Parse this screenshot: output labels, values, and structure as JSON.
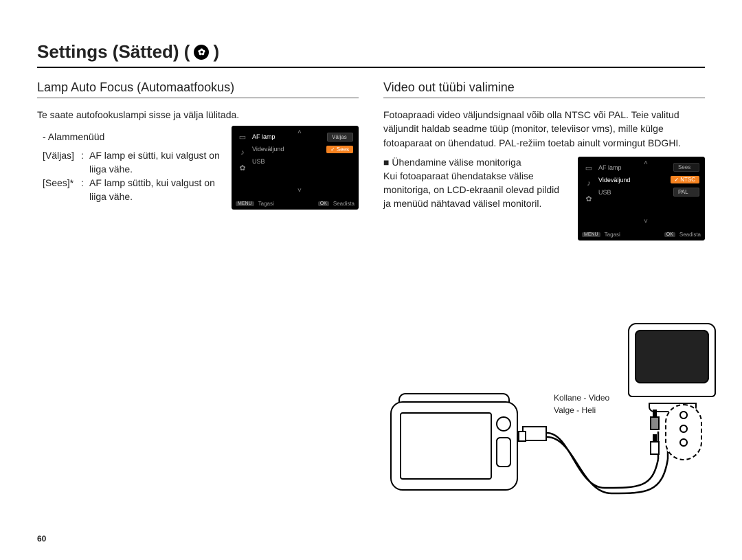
{
  "page_title_prefix": "Settings (Sätted) (",
  "page_title_suffix": ")",
  "gear_glyph": "✿",
  "left": {
    "heading": "Lamp Auto Focus (Automaatfookus)",
    "intro": "Te saate autofookuslampi sisse ja välja lülitada.",
    "submenu_label": "- Alammenüüd",
    "options": [
      {
        "key": "[Väljas]",
        "sep": ":",
        "val": "AF lamp ei sütti, kui valgust on liiga vähe."
      },
      {
        "key": "[Sees]*",
        "sep": ":",
        "val": "AF lamp süttib, kui valgust on liiga vähe."
      }
    ],
    "menu": {
      "rows": [
        {
          "label": "AF lamp",
          "active": true,
          "value": "Väljas",
          "value_style": "dark"
        },
        {
          "label": "Videväljund",
          "active": false,
          "value": "Sees",
          "value_style": "sel"
        },
        {
          "label": "USB",
          "active": false,
          "value": "",
          "value_style": "none"
        }
      ],
      "foot_back_btn": "MENU",
      "foot_back": "Tagasi",
      "foot_set_btn": "OK",
      "foot_set": "Seadista"
    }
  },
  "right": {
    "heading": "Video out tüübi valimine",
    "intro": "Fotoapraadi video väljundsignaal võib olla NTSC või PAL. Teie valitud väljundit haldab seadme tüüp (monitor, televiisor vms), mille külge fotoaparaat on ühendatud. PAL-režiim toetab ainult vormingut BDGHI.",
    "bullet": "■ Ühendamine välise monitoriga",
    "bullet_body": "Kui fotoaparaat ühendatakse välise monitoriga, on LCD-ekraanil olevad pildid ja menüüd nähtavad välisel monitoril.",
    "menu": {
      "rows": [
        {
          "label": "AF lamp",
          "active": false,
          "value": "Sees",
          "value_style": "dim"
        },
        {
          "label": "Videväljund",
          "active": true,
          "value": "NTSC",
          "value_style": "sel"
        },
        {
          "label": "USB",
          "active": false,
          "value": "PAL",
          "value_style": "dark"
        }
      ],
      "foot_back_btn": "MENU",
      "foot_back": "Tagasi",
      "foot_set_btn": "OK",
      "foot_set": "Seadista"
    }
  },
  "diagram": {
    "label_video": "Kollane - Video",
    "label_audio": "Valge - Heli"
  },
  "page_number": "60",
  "colors": {
    "accent": "#f58220",
    "rule": "#000000"
  }
}
